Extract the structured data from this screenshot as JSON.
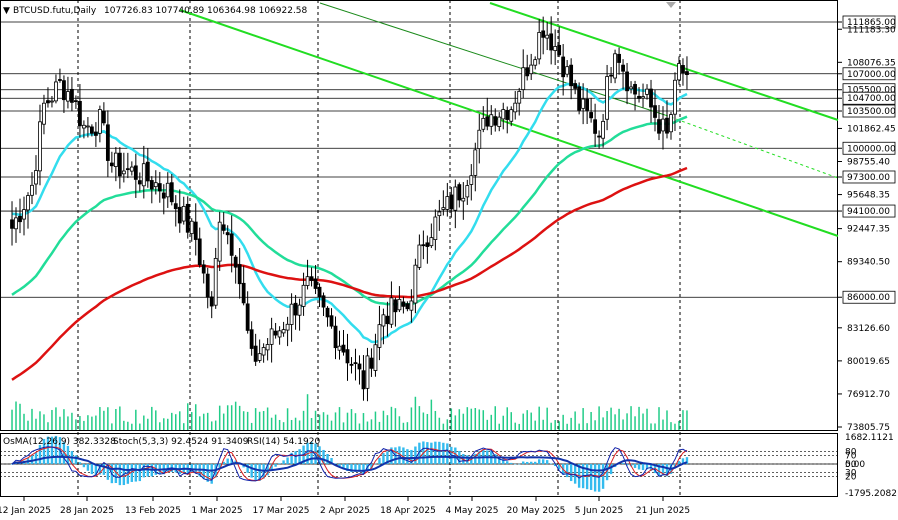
{
  "header": {
    "symbol_tf": "BTCUSD.futu,Daily",
    "ohlc": "107726.83 107740.89 106364.98 106922.58"
  },
  "indicator_header": {
    "osma": "OsMA(12,26,9) 382.3328",
    "stoch": "Stoch(5,3,3) 92.4524 91.3409",
    "rsi": "RSI(14) 54.1920"
  },
  "colors": {
    "background": "#ffffff",
    "bull_candle": "#ffffff",
    "bear_candle": "#000000",
    "candle_outline": "#000000",
    "ma_fast": "#33ddee",
    "ma_mid": "#22dd99",
    "ma_slow": "#dd1111",
    "channel": "#22dd22",
    "volume": "#22cc88",
    "osma_hist": "#33bbee",
    "stoch_main": "#1122aa",
    "stoch_signal": "#dd2222",
    "rsi": "#1133aa",
    "grid": "#000000"
  },
  "chart_data": {
    "type": "candlestick",
    "y_price_labels": [
      "111865.00",
      "111183.30",
      "108076.35",
      "107000.00",
      "105500.00",
      "104700.00",
      "103500.00",
      "101862.45",
      "100000.00",
      "98755.40",
      "97300.00",
      "95648.35",
      "94100.00",
      "92447.35",
      "89340.50",
      "86000.00",
      "83126.60",
      "80019.65",
      "76912.70",
      "73805.75"
    ],
    "level_lines": [
      111865,
      107000,
      105500,
      104700,
      103500,
      100000,
      97300,
      94100,
      86000
    ],
    "ylim": [
      73805.75,
      114000
    ],
    "x_labels": [
      "12 Jan 2025",
      "28 Jan 2025",
      "13 Feb 2025",
      "1 Mar 2025",
      "17 Mar 2025",
      "2 Apr 2025",
      "18 Apr 2025",
      "4 May 2025",
      "20 May 2025",
      "5 Jun 2025",
      "21 Jun 2025"
    ],
    "indicator_y_labels": [
      "1682.1121",
      "80",
      "70",
      "50",
      "30",
      "20",
      "0.00",
      "-1795.2082"
    ],
    "ohlc_daily_approx": [
      {
        "date": "2025-01-09",
        "close": 92500
      },
      {
        "date": "2025-01-14",
        "close": 96500
      },
      {
        "date": "2025-01-17",
        "close": 104000
      },
      {
        "date": "2025-01-21",
        "close": 106000
      },
      {
        "date": "2025-01-24",
        "close": 105000
      },
      {
        "date": "2025-01-27",
        "close": 102000
      },
      {
        "date": "2025-01-31",
        "close": 102500
      },
      {
        "date": "2025-02-03",
        "close": 98500
      },
      {
        "date": "2025-02-10",
        "close": 97500
      },
      {
        "date": "2025-02-17",
        "close": 96000
      },
      {
        "date": "2025-02-24",
        "close": 91500
      },
      {
        "date": "2025-02-28",
        "close": 84500
      },
      {
        "date": "2025-03-02",
        "close": 94000
      },
      {
        "date": "2025-03-06",
        "close": 90000
      },
      {
        "date": "2025-03-10",
        "close": 80000
      },
      {
        "date": "2025-03-17",
        "close": 83000
      },
      {
        "date": "2025-03-24",
        "close": 87000
      },
      {
        "date": "2025-03-31",
        "close": 82500
      },
      {
        "date": "2025-04-07",
        "close": 78000
      },
      {
        "date": "2025-04-12",
        "close": 84500
      },
      {
        "date": "2025-04-18",
        "close": 85000
      },
      {
        "date": "2025-04-22",
        "close": 91500
      },
      {
        "date": "2025-04-28",
        "close": 94500
      },
      {
        "date": "2025-05-02",
        "close": 96500
      },
      {
        "date": "2025-05-08",
        "close": 103000
      },
      {
        "date": "2025-05-14",
        "close": 104000
      },
      {
        "date": "2025-05-22",
        "close": 111500
      },
      {
        "date": "2025-05-26",
        "close": 109000
      },
      {
        "date": "2025-05-31",
        "close": 104000
      },
      {
        "date": "2025-06-05",
        "close": 101500
      },
      {
        "date": "2025-06-09",
        "close": 110000
      },
      {
        "date": "2025-06-13",
        "close": 105500
      },
      {
        "date": "2025-06-17",
        "close": 104500
      },
      {
        "date": "2025-06-22",
        "close": 101000
      },
      {
        "date": "2025-06-25",
        "close": 107500
      },
      {
        "date": "2025-06-27",
        "close": 106922.58
      }
    ]
  }
}
